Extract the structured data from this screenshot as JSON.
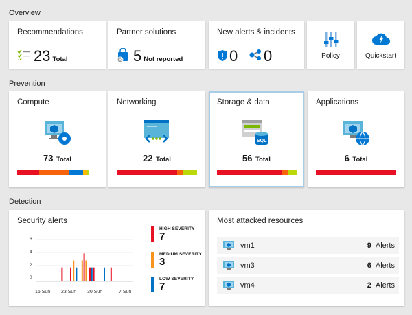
{
  "sections": {
    "overview": "Overview",
    "prevention": "Prevention",
    "detection": "Detection"
  },
  "overview": {
    "recommendations": {
      "title": "Recommendations",
      "count": "23",
      "suffix": "Total"
    },
    "partner": {
      "title": "Partner solutions",
      "count": "5",
      "suffix": "Not reported"
    },
    "alerts": {
      "title": "New alerts & incidents",
      "alerts_count": "0",
      "incidents_count": "0"
    },
    "policy": {
      "label": "Policy"
    },
    "quickstart": {
      "label": "Quickstart"
    }
  },
  "prevention": [
    {
      "title": "Compute",
      "count": "73",
      "suffix": "Total",
      "bar": [
        {
          "color": "#e81123",
          "value": 0.27
        },
        {
          "color": "#f7630c",
          "value": 0.38
        },
        {
          "color": "#0078d4",
          "value": 0.17
        },
        {
          "color": "#ffb900",
          "value": 0.05
        },
        {
          "color": "#bad80a",
          "value": 0.03
        }
      ]
    },
    {
      "title": "Networking",
      "count": "22",
      "suffix": "Total",
      "bar": [
        {
          "color": "#e81123",
          "value": 0.75
        },
        {
          "color": "#f7630c",
          "value": 0.08
        },
        {
          "color": "#bad80a",
          "value": 0.17
        }
      ]
    },
    {
      "title": "Storage & data",
      "count": "56",
      "suffix": "Total",
      "bar": [
        {
          "color": "#e81123",
          "value": 0.8
        },
        {
          "color": "#f7630c",
          "value": 0.08
        },
        {
          "color": "#bad80a",
          "value": 0.12
        }
      ]
    },
    {
      "title": "Applications",
      "count": "6",
      "suffix": "Total",
      "bar": [
        {
          "color": "#e81123",
          "value": 1.0
        }
      ]
    }
  ],
  "security_alerts": {
    "title": "Security alerts",
    "high": {
      "label": "HIGH SEVERITY",
      "value": "7",
      "color": "#e81123"
    },
    "medium": {
      "label": "MEDIUM SEVERITY",
      "value": "3",
      "color": "#f7941d"
    },
    "low": {
      "label": "LOW SEVERITY",
      "value": "7",
      "color": "#0072c6"
    }
  },
  "chart_data": {
    "type": "bar",
    "y_ticks": [
      "6",
      "4",
      "2",
      "0"
    ],
    "ylim": [
      0,
      6
    ],
    "x_tick_labels": [
      "16 Sun",
      "23 Sun",
      "30 Sun",
      "7 Sun"
    ],
    "series": [
      {
        "color": "#e81123",
        "points": [
          [
            26,
            2
          ],
          [
            35,
            2
          ],
          [
            49,
            4
          ],
          [
            55,
            2
          ],
          [
            59,
            2
          ],
          [
            77,
            2
          ]
        ]
      },
      {
        "color": "#f7941d",
        "points": [
          [
            38,
            3
          ],
          [
            47,
            3
          ],
          [
            51,
            3
          ]
        ]
      },
      {
        "color": "#0072c6",
        "points": [
          [
            41,
            2
          ],
          [
            57,
            2
          ],
          [
            70,
            2
          ]
        ]
      }
    ]
  },
  "attacked": {
    "title": "Most attacked resources",
    "rows": [
      {
        "name": "vm1",
        "count": "9",
        "label": "Alerts"
      },
      {
        "name": "vm3",
        "count": "6",
        "label": "Alerts"
      },
      {
        "name": "vm4",
        "count": "2",
        "label": "Alerts"
      }
    ]
  }
}
